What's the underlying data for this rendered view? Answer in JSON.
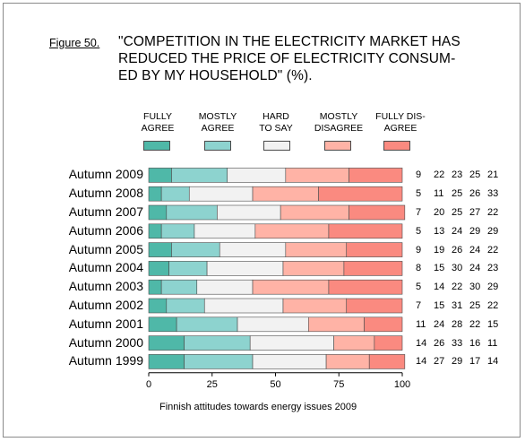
{
  "figure_label": "Figure 50.",
  "title_lines": [
    "\"COMPETITION IN THE ELECTRICITY MARKET HAS",
    "REDUCED THE PRICE OF ELECTRICITY CONSUM-",
    "ED BY MY HOUSEHOLD\" (%)."
  ],
  "source_note": "Finnish attitudes towards energy issues 2009",
  "colors": {
    "fully_agree": "#4fb8a8",
    "mostly_agree": "#8dd3cf",
    "hard_to_say": "#f2f2f2",
    "mostly_disagree": "#ffb3a6",
    "fully_disagree": "#fa8a80",
    "bar_outline": "#4a4a4a"
  },
  "legend": [
    {
      "line1": "FULLY",
      "line2": "AGREE"
    },
    {
      "line1": "MOSTLY",
      "line2": "AGREE"
    },
    {
      "line1": "HARD",
      "line2": "TO SAY"
    },
    {
      "line1": "MOSTLY",
      "line2": "DISAGREE"
    },
    {
      "line1": "FULLY DIS-",
      "line2": "AGREE"
    }
  ],
  "chart_data": {
    "type": "bar",
    "orientation": "horizontal",
    "stacked": true,
    "normalized_to": 100,
    "categories": [
      "Autumn 2009",
      "Autumn 2008",
      "Autumn 2007",
      "Autumn 2006",
      "Autumn 2005",
      "Autumn 2004",
      "Autumn 2003",
      "Autumn 2002",
      "Autumn 2001",
      "Autumn 2000",
      "Autumn 1999"
    ],
    "series": [
      {
        "name": "FULLY AGREE",
        "values": [
          9,
          5,
          7,
          5,
          9,
          8,
          5,
          7,
          11,
          14,
          14
        ]
      },
      {
        "name": "MOSTLY AGREE",
        "values": [
          22,
          11,
          20,
          13,
          19,
          15,
          14,
          15,
          24,
          26,
          27
        ]
      },
      {
        "name": "HARD TO SAY",
        "values": [
          23,
          25,
          25,
          24,
          26,
          30,
          22,
          31,
          28,
          33,
          29
        ]
      },
      {
        "name": "MOSTLY DISAGREE",
        "values": [
          25,
          26,
          27,
          29,
          24,
          24,
          30,
          25,
          22,
          16,
          17
        ]
      },
      {
        "name": "FULLY DISAGREE",
        "values": [
          21,
          33,
          22,
          29,
          22,
          23,
          29,
          22,
          15,
          11,
          14
        ]
      }
    ],
    "xlim": [
      0,
      100
    ],
    "xticks": [
      "0",
      "25",
      "50",
      "75",
      "100"
    ],
    "grid": false,
    "legend_position": "top"
  }
}
